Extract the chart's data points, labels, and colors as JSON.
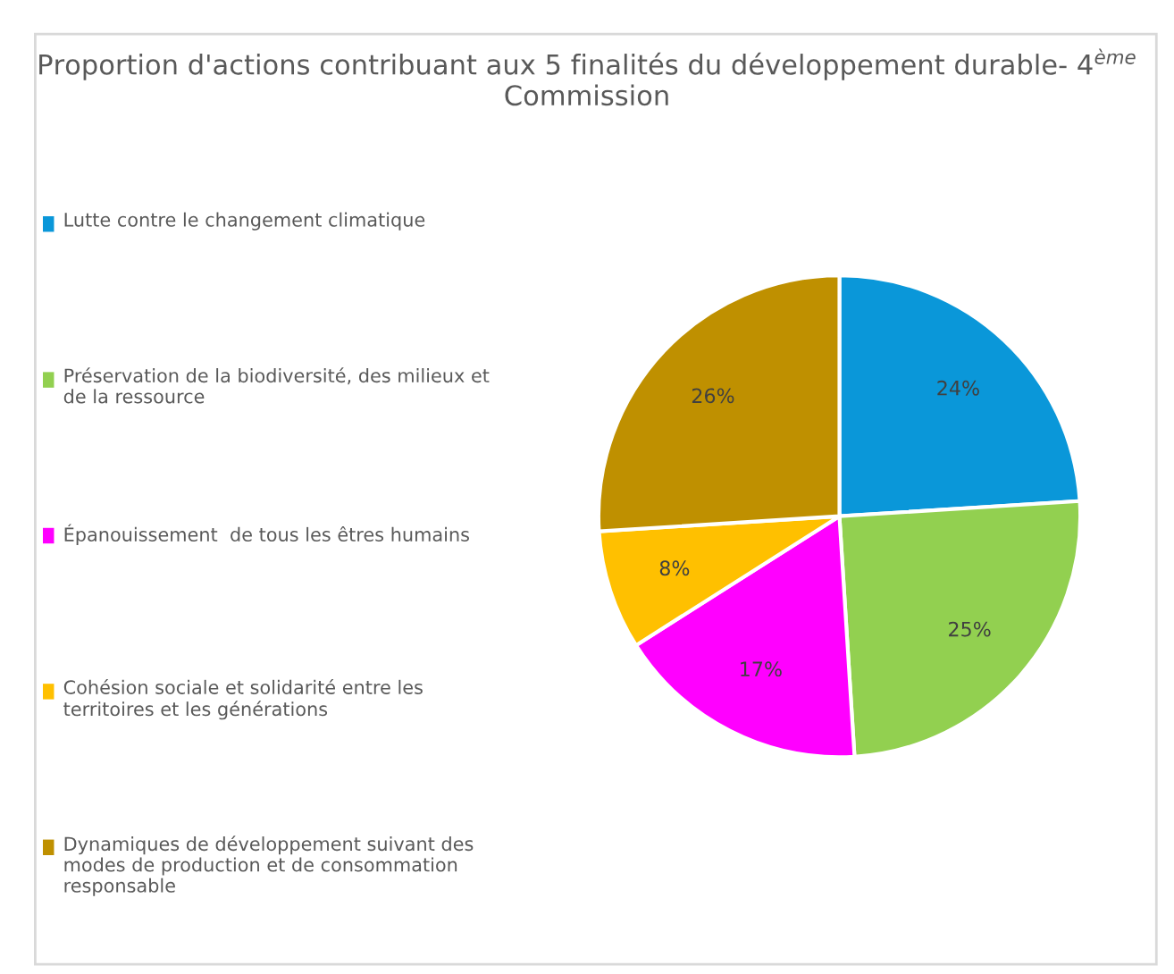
{
  "chart_data": {
    "type": "pie",
    "title": "Proportion d'actions contribuant aux 5 finalités du développement durable- 4$^{ème}$ Commission",
    "categories": [
      "Lutte contre le changement climatique",
      "Préservation de la biodiversité, des milieux et de la ressource",
      "Épanouissement  de tous les êtres humains",
      "Cohésion sociale et solidarité entre les territoires et les générations",
      "Dynamiques de développement suivant des modes de production et de consommation responsable"
    ],
    "values": [
      24,
      25,
      17,
      8,
      26
    ],
    "colors": [
      "#0a97d9",
      "#92d050",
      "#ff00ff",
      "#ffc000",
      "#bf9000"
    ],
    "value_labels": [
      "24%",
      "25%",
      "17%",
      "8%",
      "26%"
    ],
    "legend": "left"
  }
}
